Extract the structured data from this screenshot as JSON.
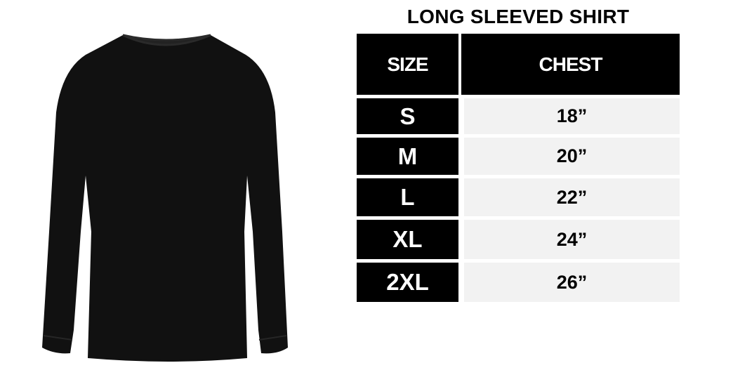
{
  "title": "LONG SLEEVED SHIRT",
  "table": {
    "headers": [
      "SIZE",
      "CHEST"
    ],
    "rows": [
      {
        "size": "S",
        "chest": "18”"
      },
      {
        "size": "M",
        "chest": "20”"
      },
      {
        "size": "L",
        "chest": "22”"
      },
      {
        "size": "XL",
        "chest": "24”"
      },
      {
        "size": "2XL",
        "chest": "26”"
      }
    ]
  },
  "colors": {
    "header_bg": "#000000",
    "size_cell_bg": "#000000",
    "value_cell_bg": "#f2f2f2",
    "shirt": "#111111"
  }
}
